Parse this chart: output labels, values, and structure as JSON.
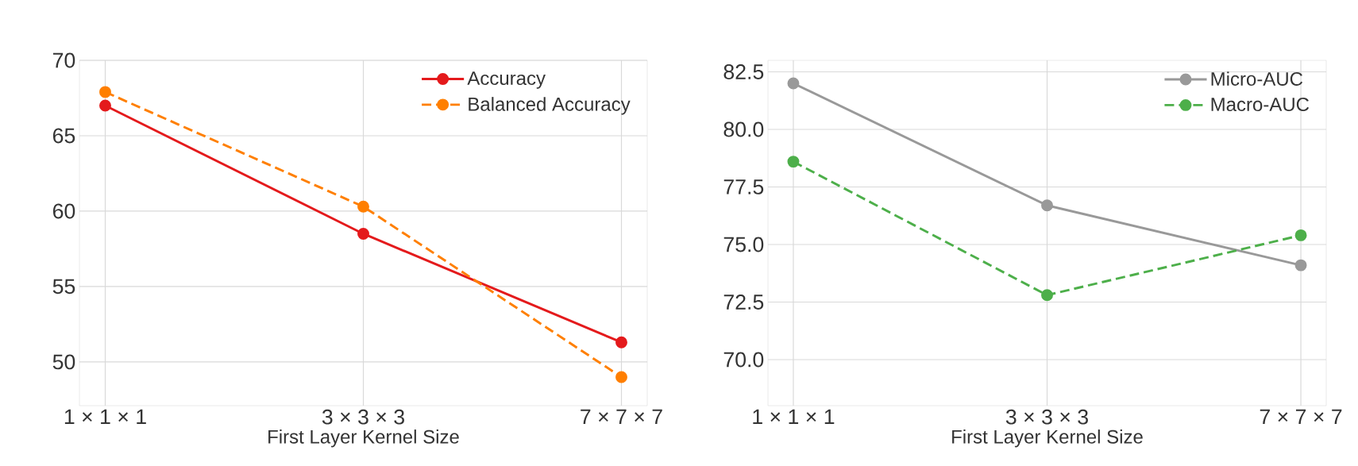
{
  "chart_data": [
    {
      "type": "line",
      "xlabel": "First Layer Kernel Size",
      "categories": [
        "1 × 1 × 1",
        "3 × 3 × 3",
        "7 × 7 × 7"
      ],
      "series": [
        {
          "name": "Accuracy",
          "color": "#e41a1c",
          "values": [
            67.0,
            58.5,
            51.3
          ],
          "line_style": "solid"
        },
        {
          "name": "Balanced Accuracy",
          "color": "#ff7f00",
          "values": [
            67.9,
            60.3,
            49.0
          ],
          "line_style": "dashed"
        }
      ],
      "ylim": [
        47.1,
        70
      ],
      "yticks": [
        50,
        55,
        60,
        65,
        70
      ],
      "grid": true,
      "legend": "top right",
      "marker": "circle"
    },
    {
      "type": "line",
      "xlabel": "First Layer Kernel Size",
      "categories": [
        "1 × 1 × 1",
        "3 × 3 × 3",
        "7 × 7 × 7"
      ],
      "series": [
        {
          "name": "Micro-AUC",
          "color": "#999999",
          "values": [
            82.0,
            76.7,
            74.1
          ],
          "line_style": "solid"
        },
        {
          "name": "Macro-AUC",
          "color": "#4daf4a",
          "values": [
            78.6,
            72.8,
            75.4
          ],
          "line_style": "dashed"
        }
      ],
      "ylim": [
        68.0,
        83.0
      ],
      "yticks": [
        {
          "value": 70,
          "label": "70.0"
        },
        72.5,
        {
          "value": 75,
          "label": "75.0"
        },
        77.5,
        {
          "value": 80,
          "label": "80.0"
        },
        82.5
      ],
      "grid": true,
      "legend": "top right",
      "marker": "circle"
    }
  ]
}
